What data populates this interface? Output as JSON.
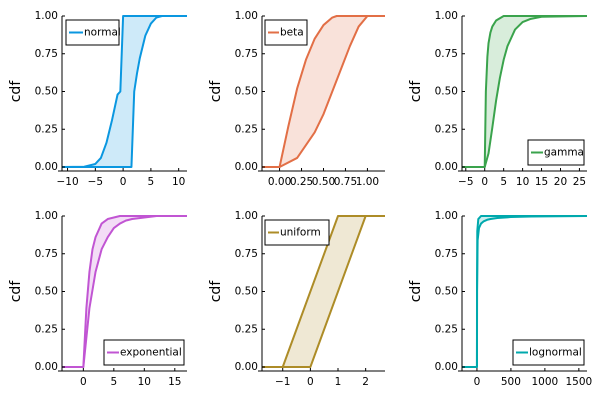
{
  "chart_data": [
    {
      "type": "area",
      "distribution": "normal",
      "legend": "normal",
      "legend_position": "top-left",
      "ylabel": "cdf",
      "color": "#0a97e0",
      "xlim": [
        -11,
        11.5
      ],
      "ylim": [
        0,
        1
      ],
      "xticks": [
        -10,
        -5,
        0,
        5,
        10
      ],
      "xtick_labels": [
        "−10",
        "−5",
        "0",
        "5",
        "10"
      ],
      "yticks": [
        0,
        0.25,
        0.5,
        0.75,
        1
      ],
      "ytick_labels": [
        "0.00",
        "0.25",
        "0.50",
        "0.75",
        "1.00"
      ],
      "series": [
        {
          "name": "lower",
          "x": [
            -11,
            -7,
            -5,
            -4,
            -3,
            -2,
            -1,
            -0.5,
            0,
            0.5,
            1,
            11.5
          ],
          "y": [
            0,
            0.002,
            0.02,
            0.06,
            0.16,
            0.31,
            0.48,
            0.5,
            1,
            1,
            1,
            1
          ]
        },
        {
          "name": "upper",
          "x": [
            -11,
            1.5,
            2,
            2.5,
            3,
            4,
            5,
            6,
            7,
            11.5
          ],
          "y": [
            0,
            0,
            0.5,
            0.62,
            0.72,
            0.87,
            0.95,
            0.99,
            1,
            1
          ]
        }
      ]
    },
    {
      "type": "area",
      "distribution": "beta",
      "legend": "beta",
      "legend_position": "top-left",
      "ylabel": "cdf",
      "color": "#e26f46",
      "xlim": [
        -0.2,
        1.2
      ],
      "ylim": [
        0,
        1
      ],
      "xticks": [
        0,
        0.25,
        0.5,
        0.75,
        1
      ],
      "xtick_labels": [
        "0.00",
        "0.25",
        "0.50",
        "0.75",
        "1.00"
      ],
      "yticks": [
        0,
        0.25,
        0.5,
        0.75,
        1
      ],
      "ytick_labels": [
        "0.00",
        "0.25",
        "0.50",
        "0.75",
        "1.00"
      ],
      "series": [
        {
          "name": "lower",
          "x": [
            -0.2,
            0,
            0.1,
            0.2,
            0.3,
            0.4,
            0.5,
            0.6,
            0.65,
            1.2
          ],
          "y": [
            0,
            0,
            0.27,
            0.52,
            0.71,
            0.85,
            0.94,
            0.99,
            1,
            1
          ]
        },
        {
          "name": "upper",
          "x": [
            -0.2,
            0,
            0.2,
            0.4,
            0.5,
            0.6,
            0.7,
            0.8,
            0.9,
            1,
            1.2
          ],
          "y": [
            0,
            0,
            0.06,
            0.23,
            0.35,
            0.5,
            0.65,
            0.8,
            0.93,
            1,
            1
          ]
        }
      ]
    },
    {
      "type": "area",
      "distribution": "gamma",
      "legend": "gamma",
      "legend_position": "bottom-right",
      "ylabel": "cdf",
      "color": "#3aa34c",
      "xlim": [
        -6,
        27
      ],
      "ylim": [
        0,
        1
      ],
      "xticks": [
        -5,
        0,
        5,
        10,
        15,
        20,
        25
      ],
      "xtick_labels": [
        "−5",
        "0",
        "5",
        "10",
        "15",
        "20",
        "25"
      ],
      "yticks": [
        0,
        0.25,
        0.5,
        0.75,
        1
      ],
      "ytick_labels": [
        "0.00",
        "0.25",
        "0.50",
        "0.75",
        "1.00"
      ],
      "series": [
        {
          "name": "lower",
          "x": [
            -6,
            0,
            0.3,
            0.7,
            1,
            1.5,
            2,
            3,
            5,
            27
          ],
          "y": [
            0,
            0,
            0.5,
            0.73,
            0.82,
            0.89,
            0.93,
            0.97,
            1,
            1
          ]
        },
        {
          "name": "upper",
          "x": [
            -6,
            0,
            1,
            2,
            3,
            4,
            5,
            6,
            8,
            10,
            12,
            15,
            27
          ],
          "y": [
            0,
            0,
            0.09,
            0.26,
            0.44,
            0.59,
            0.71,
            0.8,
            0.91,
            0.96,
            0.98,
            0.995,
            1
          ]
        }
      ]
    },
    {
      "type": "area",
      "distribution": "exponential",
      "legend": "exponential",
      "legend_position": "bottom-right",
      "ylabel": "cdf",
      "color": "#c155d3",
      "xlim": [
        -3.5,
        17
      ],
      "ylim": [
        0,
        1
      ],
      "xticks": [
        0,
        5,
        10,
        15
      ],
      "xtick_labels": [
        "0",
        "5",
        "10",
        "15"
      ],
      "yticks": [
        0,
        0.25,
        0.5,
        0.75,
        1
      ],
      "ytick_labels": [
        "0.00",
        "0.25",
        "0.50",
        "0.75",
        "1.00"
      ],
      "series": [
        {
          "name": "lower",
          "x": [
            -3.5,
            0,
            0.5,
            1,
            1.5,
            2,
            3,
            4,
            5,
            6,
            8,
            17
          ],
          "y": [
            0,
            0,
            0.39,
            0.63,
            0.78,
            0.86,
            0.95,
            0.98,
            0.99,
            1,
            1,
            1
          ]
        },
        {
          "name": "upper",
          "x": [
            -3.5,
            0,
            1,
            2,
            3,
            4,
            5,
            6,
            7,
            8,
            10,
            12,
            17
          ],
          "y": [
            0,
            0,
            0.39,
            0.63,
            0.78,
            0.86,
            0.92,
            0.95,
            0.97,
            0.98,
            0.99,
            1,
            1
          ]
        }
      ]
    },
    {
      "type": "area",
      "distribution": "uniform",
      "legend": "uniform",
      "legend_position": "top-left",
      "ylabel": "cdf",
      "color": "#ad8c27",
      "xlim": [
        -1.75,
        2.7
      ],
      "ylim": [
        0,
        1
      ],
      "xticks": [
        -1,
        0,
        1,
        2
      ],
      "xtick_labels": [
        "−1",
        "0",
        "1",
        "2"
      ],
      "yticks": [
        0,
        0.25,
        0.5,
        0.75,
        1
      ],
      "ytick_labels": [
        "0.00",
        "0.25",
        "0.50",
        "0.75",
        "1.00"
      ],
      "series": [
        {
          "name": "lower",
          "x": [
            -1.75,
            -1,
            1,
            2.7
          ],
          "y": [
            0,
            0,
            1,
            1
          ]
        },
        {
          "name": "upper",
          "x": [
            -1.75,
            0,
            2,
            2.7
          ],
          "y": [
            0,
            0,
            1,
            1
          ]
        }
      ]
    },
    {
      "type": "area",
      "distribution": "lognormal",
      "legend": "lognormal",
      "legend_position": "bottom-right",
      "ylabel": "cdf",
      "color": "#00a9ad",
      "xlim": [
        -220,
        1620
      ],
      "ylim": [
        0,
        1
      ],
      "xticks": [
        0,
        500,
        1000,
        1500
      ],
      "xtick_labels": [
        "0",
        "500",
        "1000",
        "1500"
      ],
      "yticks": [
        0,
        0.25,
        0.5,
        0.75,
        1
      ],
      "ytick_labels": [
        "0.00",
        "0.25",
        "0.50",
        "0.75",
        "1.00"
      ],
      "series": [
        {
          "name": "lower",
          "x": [
            -220,
            0,
            1,
            5,
            20,
            60,
            1620
          ],
          "y": [
            0,
            0,
            0.5,
            0.9,
            0.98,
            1,
            1
          ]
        },
        {
          "name": "upper",
          "x": [
            -220,
            0,
            2,
            10,
            30,
            60,
            100,
            150,
            200,
            300,
            500,
            800,
            1620
          ],
          "y": [
            0,
            0,
            0.5,
            0.84,
            0.92,
            0.95,
            0.965,
            0.975,
            0.98,
            0.987,
            0.993,
            0.997,
            1
          ]
        }
      ]
    }
  ]
}
